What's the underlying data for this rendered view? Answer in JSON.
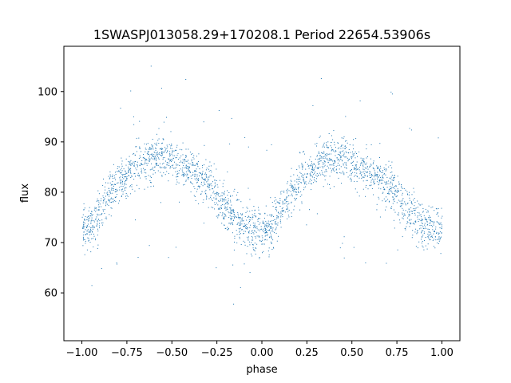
{
  "chart_data": {
    "type": "scatter",
    "title": "1SWASPJ013058.29+170208.1 Period 22654.53906s",
    "xlabel": "phase",
    "ylabel": "flux",
    "xlim": [
      -1.1,
      1.1
    ],
    "ylim": [
      50.5,
      109.0
    ],
    "xticks": [
      -1.0,
      -0.75,
      -0.5,
      -0.25,
      0.0,
      0.25,
      0.5,
      0.75,
      1.0
    ],
    "xtick_labels": [
      "−1.00",
      "−0.75",
      "−0.50",
      "−0.25",
      "0.00",
      "0.25",
      "0.50",
      "0.75",
      "1.00"
    ],
    "yticks": [
      60,
      70,
      80,
      90,
      100
    ],
    "ytick_labels": [
      "60",
      "70",
      "80",
      "90",
      "100"
    ],
    "grid": false,
    "marker_color": "#1f77b4",
    "series": [
      {
        "name": "",
        "description_points": [
          [
            -1.0,
            73.5
          ],
          [
            -0.95,
            73.0
          ],
          [
            -0.9,
            76.0
          ],
          [
            -0.85,
            79.5
          ],
          [
            -0.8,
            81.5
          ],
          [
            -0.75,
            83.5
          ],
          [
            -0.7,
            85.5
          ],
          [
            -0.65,
            86.5
          ],
          [
            -0.6,
            87.0
          ],
          [
            -0.55,
            87.0
          ],
          [
            -0.5,
            86.0
          ],
          [
            -0.45,
            85.0
          ],
          [
            -0.4,
            84.0
          ],
          [
            -0.35,
            83.0
          ],
          [
            -0.3,
            81.5
          ],
          [
            -0.25,
            79.5
          ],
          [
            -0.2,
            77.0
          ],
          [
            -0.15,
            75.0
          ],
          [
            -0.1,
            73.5
          ],
          [
            -0.05,
            72.5
          ],
          [
            0.0,
            72.5
          ],
          [
            0.05,
            73.0
          ],
          [
            0.1,
            76.0
          ],
          [
            0.15,
            79.5
          ],
          [
            0.2,
            81.5
          ],
          [
            0.25,
            83.5
          ],
          [
            0.3,
            85.5
          ],
          [
            0.35,
            86.5
          ],
          [
            0.4,
            87.0
          ],
          [
            0.45,
            87.0
          ],
          [
            0.5,
            86.0
          ],
          [
            0.55,
            85.0
          ],
          [
            0.6,
            84.0
          ],
          [
            0.65,
            83.0
          ],
          [
            0.7,
            81.5
          ],
          [
            0.75,
            79.5
          ],
          [
            0.8,
            77.0
          ],
          [
            0.85,
            75.0
          ],
          [
            0.9,
            73.5
          ],
          [
            0.95,
            72.5
          ],
          [
            1.0,
            72.5
          ]
        ]
      }
    ]
  }
}
